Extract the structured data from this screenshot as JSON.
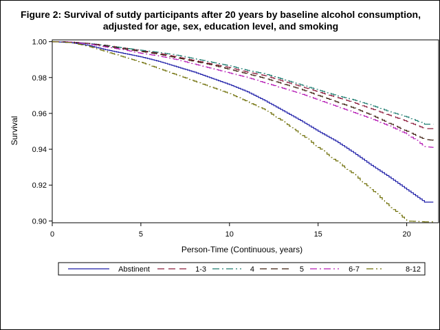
{
  "chart_data": {
    "type": "line",
    "title": [
      "Figure 2: Survival of sutdy participants after 20 years by baseline alcohol consumption,",
      "adjusted for age, sex, education level, and smoking"
    ],
    "xlabel": "Person-Time (Continuous, years)",
    "ylabel": "Survival",
    "xlim": [
      0,
      21.8
    ],
    "ylim": [
      0.899,
      1.001
    ],
    "x_ticks": [
      0,
      5,
      10,
      15,
      20
    ],
    "y_ticks": [
      0.9,
      0.92,
      0.94,
      0.96,
      0.98,
      1.0
    ],
    "y_tick_labels": [
      "0.90",
      "0.92",
      "0.94",
      "0.96",
      "0.98",
      "1.00"
    ],
    "x_tick_labels": [
      "0",
      "5",
      "10",
      "15",
      "20"
    ],
    "grid": false,
    "legend_position": "bottom",
    "series": [
      {
        "name": "Abstinent",
        "color": "#1a1aa6",
        "dash": "solid",
        "x": [
          0,
          1,
          2,
          3,
          4,
          5,
          6,
          7,
          8,
          9,
          10,
          11,
          12,
          13,
          14,
          15,
          16,
          17,
          18,
          19,
          20,
          21,
          21.5
        ],
        "y": [
          1.0,
          0.9995,
          0.998,
          0.9955,
          0.9935,
          0.9915,
          0.989,
          0.986,
          0.983,
          0.9795,
          0.976,
          0.972,
          0.967,
          0.9615,
          0.956,
          0.95,
          0.9445,
          0.938,
          0.931,
          0.9245,
          0.9175,
          0.9105,
          0.9105
        ]
      },
      {
        "name": "1-3",
        "color": "#8b1a3a",
        "dash": "longdash",
        "x": [
          0,
          1,
          2,
          3,
          4,
          5,
          6,
          7,
          8,
          9,
          10,
          11,
          12,
          13,
          14,
          15,
          16,
          17,
          18,
          19,
          20,
          21,
          21.5
        ],
        "y": [
          1.0,
          0.9998,
          0.999,
          0.998,
          0.9965,
          0.995,
          0.9935,
          0.9915,
          0.9895,
          0.9875,
          0.9855,
          0.983,
          0.981,
          0.978,
          0.975,
          0.972,
          0.969,
          0.966,
          0.9625,
          0.959,
          0.9555,
          0.9515,
          0.9515
        ]
      },
      {
        "name": "4",
        "color": "#1a7a6e",
        "dash": "dashdot",
        "x": [
          0,
          1,
          2,
          3,
          4,
          5,
          6,
          7,
          8,
          9,
          10,
          11,
          12,
          13,
          14,
          15,
          16,
          17,
          18,
          19,
          20,
          21,
          21.5
        ],
        "y": [
          1.0,
          0.9998,
          0.999,
          0.9978,
          0.9965,
          0.9952,
          0.994,
          0.9925,
          0.9905,
          0.9885,
          0.9865,
          0.984,
          0.982,
          0.979,
          0.976,
          0.973,
          0.97,
          0.9675,
          0.9645,
          0.961,
          0.958,
          0.954,
          0.954
        ]
      },
      {
        "name": "5",
        "color": "#3a1a0a",
        "dash": "longdash",
        "x": [
          0,
          1,
          2,
          3,
          4,
          5,
          6,
          7,
          8,
          9,
          10,
          11,
          12,
          13,
          14,
          15,
          16,
          17,
          18,
          19,
          20,
          21,
          21.5
        ],
        "y": [
          1.0,
          0.9998,
          0.999,
          0.9975,
          0.996,
          0.9945,
          0.993,
          0.991,
          0.989,
          0.987,
          0.9845,
          0.982,
          0.9795,
          0.9765,
          0.9735,
          0.97,
          0.9665,
          0.963,
          0.959,
          0.9545,
          0.95,
          0.9455,
          0.945
        ]
      },
      {
        "name": "6-7",
        "color": "#b51ab5",
        "dash": "dashdot",
        "x": [
          0,
          1,
          2,
          3,
          4,
          5,
          6,
          7,
          8,
          9,
          10,
          11,
          12,
          13,
          14,
          15,
          16,
          17,
          18,
          19,
          20,
          21,
          21.5
        ],
        "y": [
          1.0,
          0.9998,
          0.9988,
          0.997,
          0.9955,
          0.9935,
          0.992,
          0.99,
          0.9875,
          0.985,
          0.9825,
          0.98,
          0.977,
          0.974,
          0.971,
          0.9675,
          0.964,
          0.9605,
          0.957,
          0.953,
          0.9485,
          0.9415,
          0.941
        ]
      },
      {
        "name": "8-12",
        "color": "#6b6b00",
        "dash": "dashdot",
        "x": [
          0,
          1,
          2,
          3,
          4,
          5,
          6,
          7,
          8,
          9,
          10,
          11,
          12,
          13,
          14,
          15,
          16,
          17,
          18,
          19,
          20,
          21,
          21.5
        ],
        "y": [
          1.0,
          0.9995,
          0.9975,
          0.9945,
          0.9915,
          0.9885,
          0.985,
          0.9815,
          0.978,
          0.9745,
          0.971,
          0.9665,
          0.962,
          0.9555,
          0.9485,
          0.941,
          0.9335,
          0.926,
          0.9175,
          0.9085,
          0.9,
          0.8995,
          0.8995
        ]
      }
    ]
  }
}
